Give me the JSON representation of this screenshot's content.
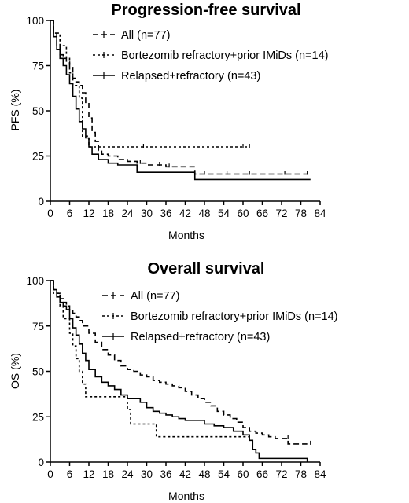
{
  "chart_data": [
    {
      "type": "line",
      "title": "Progression-free survival",
      "xlabel": "Months",
      "ylabel": "PFS (%)",
      "xlim": [
        0,
        84
      ],
      "ylim": [
        0,
        100
      ],
      "xticks": [
        "0",
        "6",
        "12",
        "18",
        "24",
        "30",
        "36",
        "42",
        "48",
        "54",
        "60",
        "66",
        "72",
        "78",
        "84"
      ],
      "yticks": [
        "0",
        "25",
        "50",
        "75",
        "100"
      ],
      "legend_position": "top-right",
      "series": [
        {
          "name": "All (n=77)",
          "style": "dashed",
          "x": [
            0,
            1,
            2,
            3,
            4,
            5,
            6,
            7,
            8,
            9,
            10,
            11,
            12,
            13,
            14,
            15,
            16,
            18,
            21,
            24,
            27,
            30,
            36,
            45,
            80
          ],
          "y": [
            100,
            93,
            86,
            81,
            79,
            77,
            74,
            68,
            66,
            64,
            60,
            54,
            46,
            38,
            33,
            28,
            26,
            25,
            23,
            22,
            21,
            20,
            19,
            15,
            15
          ],
          "censored": [
            [
              28,
              21
            ],
            [
              34,
              20
            ],
            [
              37,
              19
            ],
            [
              45,
              15
            ],
            [
              48,
              15
            ],
            [
              55,
              15
            ],
            [
              62,
              15
            ],
            [
              73,
              15
            ],
            [
              80,
              15
            ]
          ]
        },
        {
          "name": "Bortezomib refractory+prior IMiDs (n=14)",
          "style": "dotted",
          "x": [
            0,
            1,
            3,
            5,
            6,
            7,
            9,
            10,
            12,
            62
          ],
          "y": [
            100,
            93,
            86,
            79,
            71,
            64,
            57,
            36,
            30,
            30
          ],
          "censored": [
            [
              29,
              30
            ],
            [
              60,
              30
            ],
            [
              62,
              30
            ]
          ]
        },
        {
          "name": "Relapsed+refractory (n=43)",
          "style": "solid",
          "x": [
            0,
            1,
            2,
            3,
            4,
            5,
            6,
            7,
            8,
            9,
            10,
            11,
            12,
            13,
            15,
            18,
            21,
            27,
            45,
            81
          ],
          "y": [
            100,
            91,
            84,
            79,
            75,
            70,
            65,
            58,
            51,
            44,
            40,
            35,
            30,
            26,
            23,
            21,
            20,
            16,
            12,
            12
          ],
          "censored": []
        }
      ]
    },
    {
      "type": "line",
      "title": "Overall survival",
      "xlabel": "Months",
      "ylabel": "OS (%)",
      "xlim": [
        0,
        84
      ],
      "ylim": [
        0,
        100
      ],
      "xticks": [
        "0",
        "6",
        "12",
        "18",
        "24",
        "30",
        "36",
        "42",
        "48",
        "54",
        "60",
        "66",
        "72",
        "78",
        "84"
      ],
      "yticks": [
        "0",
        "25",
        "50",
        "75",
        "100"
      ],
      "legend_position": "top-right",
      "series": [
        {
          "name": "All (n=77)",
          "style": "dashed",
          "x": [
            0,
            1,
            2,
            3,
            4,
            5,
            6,
            7,
            8,
            9,
            10,
            12,
            14,
            16,
            18,
            20,
            22,
            24,
            26,
            28,
            30,
            32,
            34,
            36,
            38,
            40,
            42,
            44,
            46,
            48,
            50,
            52,
            54,
            56,
            58,
            60,
            62,
            64,
            66,
            68,
            70,
            72,
            74,
            76,
            80
          ],
          "y": [
            100,
            95,
            93,
            90,
            88,
            86,
            84,
            82,
            80,
            78,
            75,
            71,
            66,
            62,
            59,
            56,
            53,
            51,
            50,
            48,
            47,
            45,
            44,
            43,
            42,
            41,
            39,
            37,
            35,
            33,
            31,
            28,
            26,
            24,
            22,
            19,
            17,
            16,
            15,
            14,
            13,
            13,
            10,
            10,
            10
          ],
          "censored": [
            [
              62,
              17
            ],
            [
              74,
              13
            ],
            [
              81,
              10
            ]
          ]
        },
        {
          "name": "Bortezomib refractory+prior IMiDs (n=14)",
          "style": "dotted",
          "x": [
            0,
            1,
            2,
            3,
            4,
            5,
            6,
            7,
            8,
            9,
            10,
            11,
            12,
            24,
            25,
            28,
            30,
            33,
            62
          ],
          "y": [
            100,
            93,
            93,
            86,
            79,
            79,
            71,
            64,
            57,
            50,
            43,
            36,
            36,
            29,
            21,
            21,
            21,
            14,
            14
          ],
          "censored": []
        },
        {
          "name": "Relapsed+refractory (n=43)",
          "style": "solid",
          "x": [
            0,
            1,
            2,
            3,
            4,
            5,
            6,
            7,
            8,
            9,
            10,
            11,
            12,
            14,
            16,
            18,
            20,
            22,
            24,
            26,
            28,
            30,
            32,
            34,
            36,
            38,
            40,
            42,
            45,
            48,
            51,
            54,
            57,
            60,
            62,
            63,
            64,
            65,
            66,
            80
          ],
          "y": [
            100,
            95,
            91,
            88,
            86,
            84,
            79,
            74,
            70,
            65,
            60,
            56,
            51,
            47,
            44,
            42,
            40,
            37,
            35,
            35,
            33,
            30,
            28,
            27,
            26,
            25,
            24,
            23,
            23,
            21,
            20,
            19,
            17,
            15,
            12,
            7,
            5,
            2,
            2,
            0
          ],
          "censored": []
        }
      ]
    }
  ]
}
